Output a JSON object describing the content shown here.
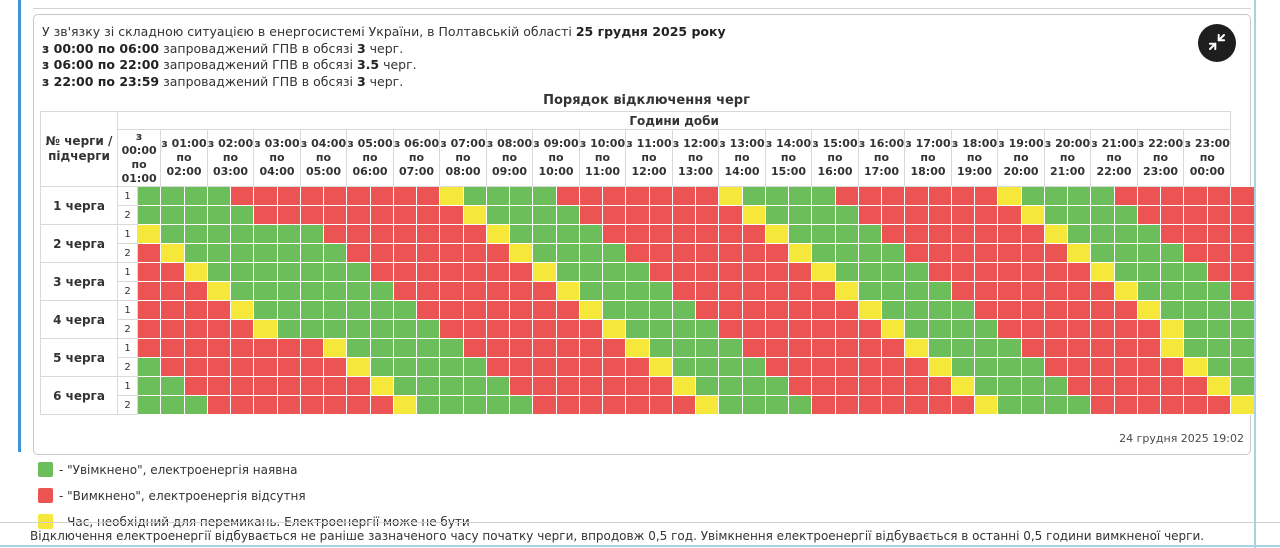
{
  "intro": {
    "line1_normal": "У зв'язку зі складною ситуацією в енергосистемі України, в Полтавській області ",
    "line1_bold": "25 грудня 2025 року",
    "gpv_lines": [
      {
        "time": "з 00:00 по 06:00",
        "mid": " запроваджений ГПВ в обсязі ",
        "amount": "3",
        "tail": " черг."
      },
      {
        "time": "з 06:00 по 22:00",
        "mid": " запроваджений ГПВ в обсязі ",
        "amount": "3.5",
        "tail": " черг."
      },
      {
        "time": "з 22:00 по 23:59",
        "mid": " запроваджений ГПВ в обсязі ",
        "amount": "3",
        "tail": " черг."
      }
    ]
  },
  "table": {
    "title": "Порядок відключення черг",
    "corner_header": "№ черги / підчерги",
    "hours_header": "Години доби",
    "columns": [
      {
        "start": "з 00:00",
        "mid": "по",
        "end": "01:00"
      },
      {
        "start": "з 01:00",
        "mid": "по",
        "end": "02:00"
      },
      {
        "start": "з 02:00",
        "mid": "по",
        "end": "03:00"
      },
      {
        "start": "з 03:00",
        "mid": "по",
        "end": "04:00"
      },
      {
        "start": "з 04:00",
        "mid": "по",
        "end": "05:00"
      },
      {
        "start": "з 05:00",
        "mid": "по",
        "end": "06:00"
      },
      {
        "start": "з 06:00",
        "mid": "по",
        "end": "07:00"
      },
      {
        "start": "з 07:00",
        "mid": "по",
        "end": "08:00"
      },
      {
        "start": "з 08:00",
        "mid": "по",
        "end": "09:00"
      },
      {
        "start": "з 09:00",
        "mid": "по",
        "end": "10:00"
      },
      {
        "start": "з 10:00",
        "mid": "по",
        "end": "11:00"
      },
      {
        "start": "з 11:00",
        "mid": "по",
        "end": "12:00"
      },
      {
        "start": "з 12:00",
        "mid": "по",
        "end": "13:00"
      },
      {
        "start": "з 13:00",
        "mid": "по",
        "end": "14:00"
      },
      {
        "start": "з 14:00",
        "mid": "по",
        "end": "15:00"
      },
      {
        "start": "з 15:00",
        "mid": "по",
        "end": "16:00"
      },
      {
        "start": "з 16:00",
        "mid": "по",
        "end": "17:00"
      },
      {
        "start": "з 17:00",
        "mid": "по",
        "end": "18:00"
      },
      {
        "start": "з 18:00",
        "mid": "по",
        "end": "19:00"
      },
      {
        "start": "з 19:00",
        "mid": "по",
        "end": "20:00"
      },
      {
        "start": "з 20:00",
        "mid": "по",
        "end": "21:00"
      },
      {
        "start": "з 21:00",
        "mid": "по",
        "end": "22:00"
      },
      {
        "start": "з 22:00",
        "mid": "по",
        "end": "23:00"
      },
      {
        "start": "з 23:00",
        "mid": "по",
        "end": "00:00"
      }
    ],
    "cell_states_legend": "G=увімкнено, R=вимкнено, Y=перемикання; 48 півгодинних комірок 00:00-24:00",
    "queues": [
      {
        "label": "1 черга",
        "subqueues": [
          {
            "name": "1",
            "cells": "GGGGRRRRRRRRRYGGGGRRRRRRRYGGGGRRRRRRRYGGGGRRRRRR"
          },
          {
            "name": "2",
            "cells": "GGGGGRRRRRRRRRYGGGGRRRRRRRYGGGGRRRRRRRYGGGGRRRRR"
          }
        ]
      },
      {
        "label": "2 черга",
        "subqueues": [
          {
            "name": "1",
            "cells": "YGGGGGGGRRRRRRRYGGGGRRRRRRRYGGGGRRRRRRRYGGGGRRRR"
          },
          {
            "name": "2",
            "cells": "RYGGGGGGGRRRRRRRYGGGGRRRRRRRYGGGGRRRRRRRYGGGGRRR"
          }
        ]
      },
      {
        "label": "3 черга",
        "subqueues": [
          {
            "name": "1",
            "cells": "RRYGGGGGGGRRRRRRRYGGGGRRRRRRRYGGGGRRRRRRRYGGGGRR"
          },
          {
            "name": "2",
            "cells": "RRRYGGGGGGGRRRRRRRYGGGGRRRRRRRYGGGGRRRRRRRYGGGGR"
          }
        ]
      },
      {
        "label": "4 черга",
        "subqueues": [
          {
            "name": "1",
            "cells": "RRRRYGGGGGGGRRRRRRRYGGGGRRRRRRRYGGGGRRRRRRRYGGGG"
          },
          {
            "name": "2",
            "cells": "RRRRRYGGGGGGGRRRRRRRYGGGGRRRRRRRYGGGGRRRRRRRYGGG"
          }
        ]
      },
      {
        "label": "5 черга",
        "subqueues": [
          {
            "name": "1",
            "cells": "RRRRRRRRYGGGGGRRRRRRRYGGGGRRRRRRRYGGGGRRRRRRYGGG"
          },
          {
            "name": "2",
            "cells": "GRRRRRRRRYGGGGGRRRRRRRYGGGGRRRRRRRYGGGGRRRRRRYGG"
          }
        ]
      },
      {
        "label": "6 черга",
        "subqueues": [
          {
            "name": "1",
            "cells": "GGRRRRRRRRYGGGGGRRRRRRRYGGGGRRRRRRRYGGGGRRRRRRYG"
          },
          {
            "name": "2",
            "cells": "GGGRRRRRRRRYGGGGGRRRRRRRYGGGGRRRRRRRYGGGGRRRRRRY"
          }
        ]
      }
    ]
  },
  "timestamp": "24 грудня 2025 19:02",
  "legend": [
    {
      "state": "on",
      "color": "#6cbe5b",
      "label": "- \"Увімкнено\", електроенергія наявна"
    },
    {
      "state": "off",
      "color": "#ec5353",
      "label": "- \"Вимкнено\", електроенергія відсутня"
    },
    {
      "state": "switch",
      "color": "#f6e73b",
      "label": "- Час, необхідний для перемикань. Електроенергії може не бути"
    }
  ],
  "note": "Відключення електроенергії відбувається не раніше зазначеного часу початку черги, впродовж 0,5 год. Увімкнення електроенергії відбувається в останні 0,5 години вимкненої черги.",
  "colors": {
    "on": "#6cbe5b",
    "off": "#ec5353",
    "switch": "#f6e73b"
  },
  "icon": {
    "collapse": "collapse-arrows-icon"
  }
}
